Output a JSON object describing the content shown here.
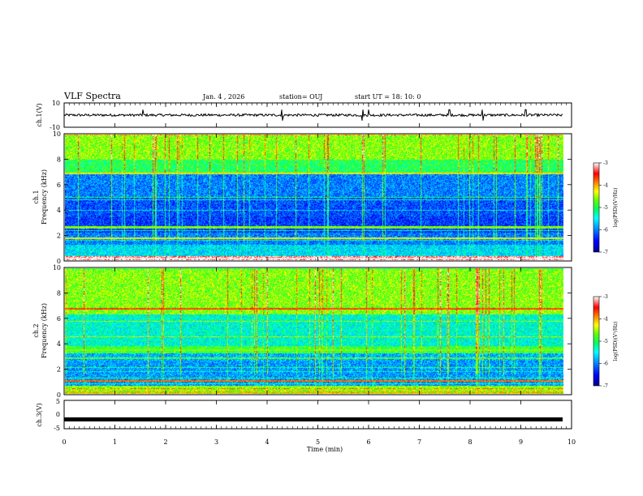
{
  "header": {
    "title": "VLF Spectra",
    "date": "Jan. 4 , 2026",
    "station": "station= OUJ",
    "start": "start UT =   18: 10: 0"
  },
  "chart_data": [
    {
      "type": "line",
      "panel": "ch1-waveform",
      "ylabel": "ch.1(V)",
      "ylim": [
        -10,
        10
      ],
      "yticks": [
        "10",
        "-10"
      ],
      "xlim": [
        0,
        10
      ],
      "series": [
        {
          "baseline": 0,
          "noise_amplitude": 1.0,
          "spikes_min": [
            1.55,
            4.3,
            5.88,
            6.0,
            7.6,
            8.25,
            9.1
          ]
        }
      ]
    },
    {
      "type": "heatmap",
      "panel": "ch1-spectrogram",
      "ylabel": "ch.1\nFrequency (kHz)",
      "xlim": [
        0,
        9.85
      ],
      "ylim": [
        0,
        10
      ],
      "yticks": [
        "0",
        "2",
        "4",
        "6",
        "8",
        "10"
      ],
      "colorbar": {
        "label": "log(PSD)(V²/Hz)",
        "range": [
          -7,
          -3
        ],
        "ticks": [
          "-3",
          "-4",
          "-5",
          "-6",
          "-7"
        ]
      },
      "bands_khz": [
        {
          "from": 0.0,
          "to": 0.3,
          "level": -3.2
        },
        {
          "from": 0.3,
          "to": 1.2,
          "level": -5.6
        },
        {
          "from": 1.2,
          "to": 2.2,
          "level": -6.0
        },
        {
          "from": 2.2,
          "to": 3.5,
          "level": -6.3
        },
        {
          "from": 3.5,
          "to": 5.0,
          "level": -6.2
        },
        {
          "from": 5.0,
          "to": 6.9,
          "level": -6.0
        },
        {
          "from": 6.9,
          "to": 8.0,
          "level": -5.0
        },
        {
          "from": 8.0,
          "to": 10.0,
          "level": -4.6
        }
      ]
    },
    {
      "type": "heatmap",
      "panel": "ch2-spectrogram",
      "ylabel": "ch.2\nFrequency (kHz)",
      "xlim": [
        0,
        9.85
      ],
      "ylim": [
        0,
        10
      ],
      "yticks": [
        "0",
        "2",
        "4",
        "6",
        "8",
        "10"
      ],
      "colorbar": {
        "label": "log(PSD)(V²/Hz)",
        "range": [
          -7,
          -3
        ],
        "ticks": [
          "-3",
          "-4",
          "-5",
          "-6",
          "-7"
        ]
      },
      "bands_khz": [
        {
          "from": 0.0,
          "to": 0.6,
          "level": -4.6
        },
        {
          "from": 0.6,
          "to": 2.6,
          "level": -5.9
        },
        {
          "from": 2.6,
          "to": 3.2,
          "level": -5.8
        },
        {
          "from": 3.2,
          "to": 3.8,
          "level": -4.9
        },
        {
          "from": 3.8,
          "to": 6.3,
          "level": -5.4
        },
        {
          "from": 6.3,
          "to": 10.0,
          "level": -4.6
        }
      ]
    },
    {
      "type": "line",
      "panel": "ch3-waveform",
      "ylabel": "ch.3(V)",
      "ylim": [
        -5,
        5
      ],
      "yticks": [
        "5",
        "0",
        "-5"
      ],
      "xlim": [
        0,
        10
      ],
      "series": [
        {
          "value": -1.7
        }
      ]
    }
  ],
  "xaxis": {
    "label": "Time (min)",
    "ticks": [
      "0",
      "1",
      "2",
      "3",
      "4",
      "5",
      "6",
      "7",
      "8",
      "9",
      "10"
    ]
  },
  "colors": {
    "colormap": [
      "#00008f",
      "#0000ff",
      "#00a0ff",
      "#00ffff",
      "#00ff60",
      "#60ff00",
      "#ffff00",
      "#ff8000",
      "#ff0000",
      "#ffffff"
    ]
  }
}
